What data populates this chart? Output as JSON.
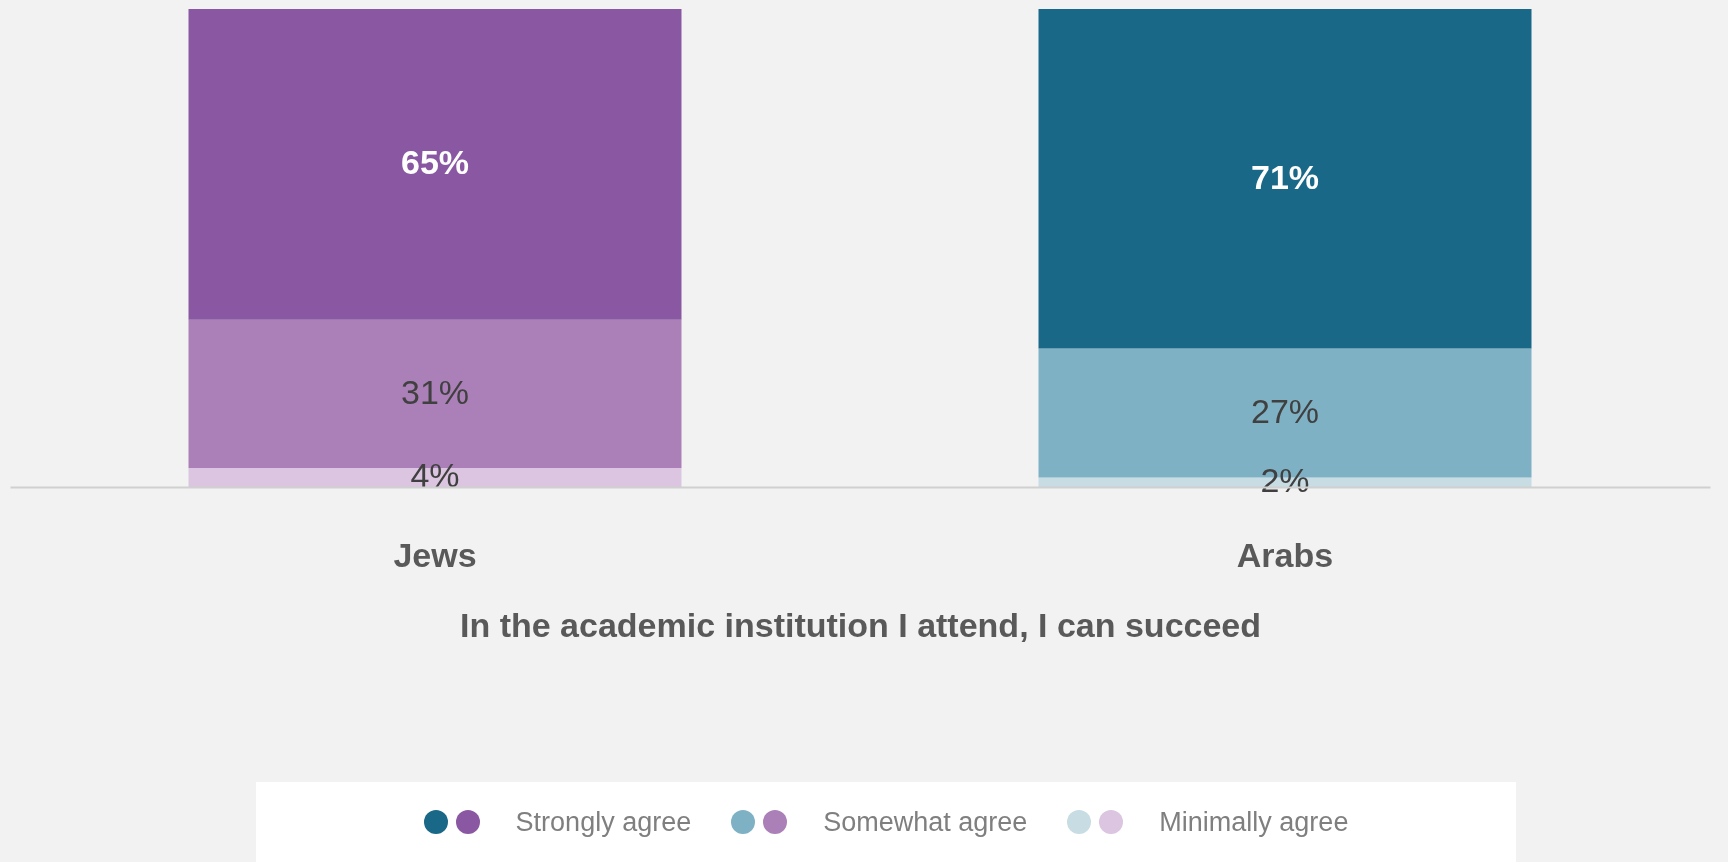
{
  "chart_data": {
    "type": "bar",
    "stacked": true,
    "legend": "bottom",
    "xlabel": "In the academic institution I attend, I can succeed",
    "categories": [
      "Jews",
      "Arabs"
    ],
    "series": [
      {
        "name": "Minimally agree",
        "colors": [
          "#dbc5e0",
          "#c8dce3"
        ],
        "values": [
          4,
          2
        ],
        "value_labels": [
          "4%",
          "2%"
        ]
      },
      {
        "name": "Somewhat agree",
        "colors": [
          "#ab80b8",
          "#7fb1c5"
        ],
        "values": [
          31,
          27
        ],
        "value_labels": [
          "31%",
          "27%"
        ]
      },
      {
        "name": "Strongly agree",
        "colors": [
          "#8a58a2",
          "#1a6887"
        ],
        "values": [
          65,
          71
        ],
        "value_labels": [
          "65%",
          "71%"
        ]
      }
    ]
  }
}
